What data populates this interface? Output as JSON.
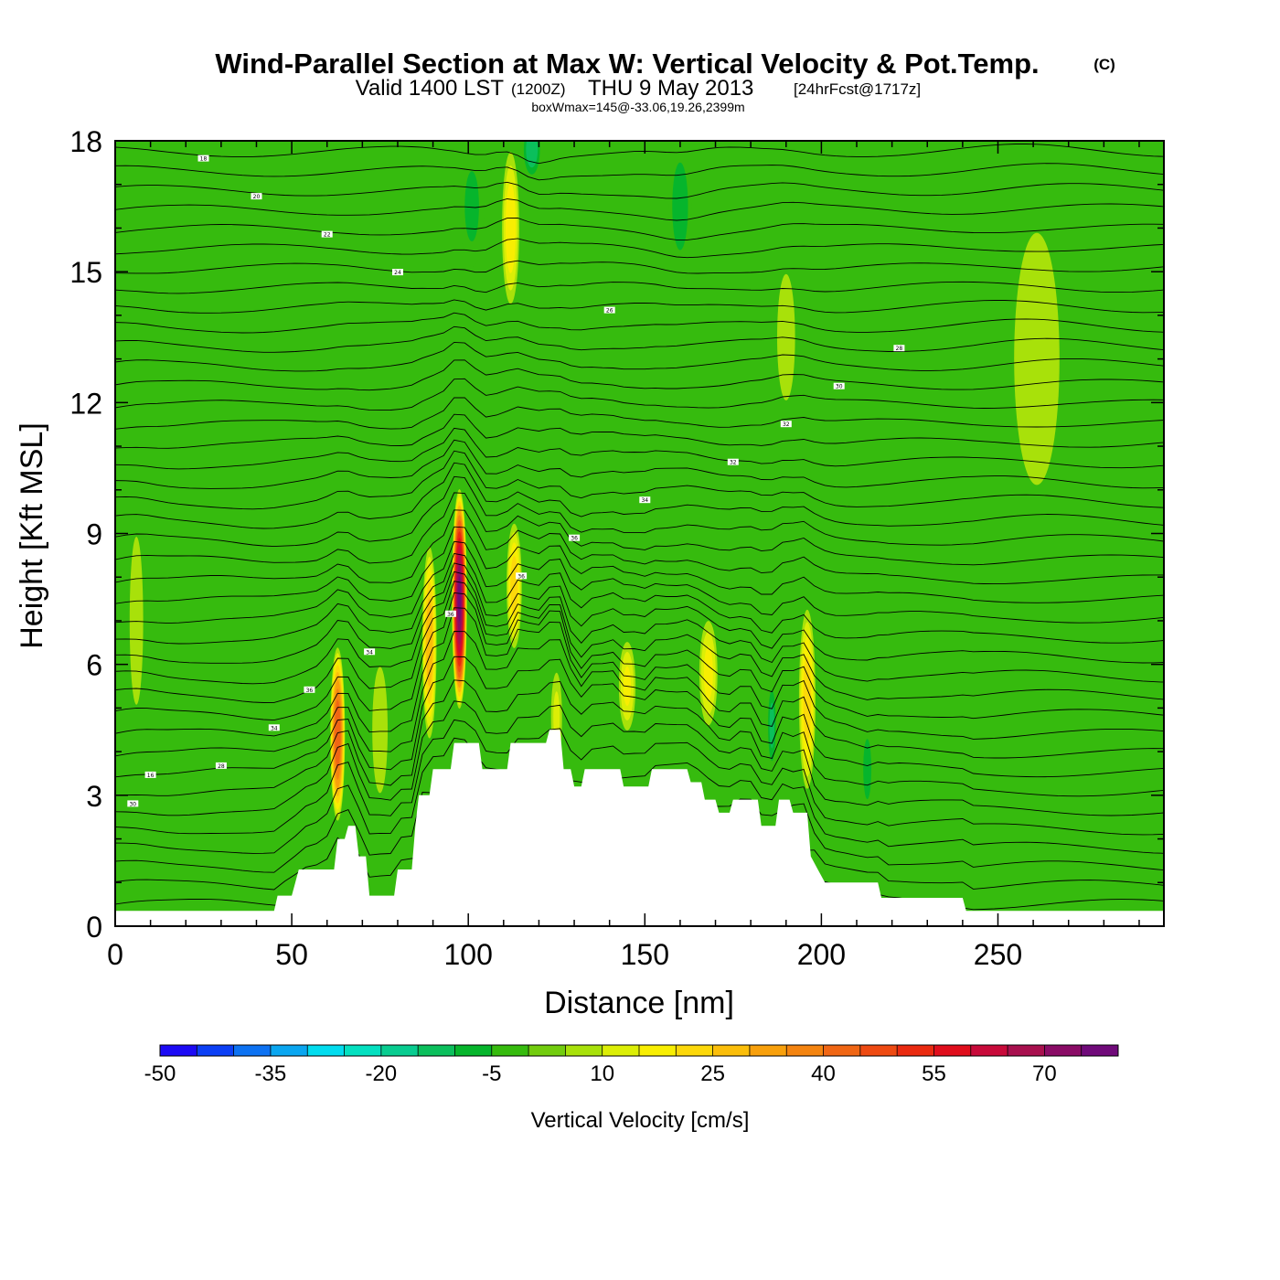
{
  "header": {
    "title": "Wind-Parallel Section at Max W: Vertical Velocity & Pot.Temp.",
    "copyright": "(C)",
    "valid_main": "Valid 1400 LST",
    "valid_utc": "(1200Z)",
    "valid_date": "THU 9 May 2013",
    "forecast": "[24hrFcst@1717z]",
    "box_info": "boxWmax=145@-33.06,19.26,2399m"
  },
  "chart_data": {
    "type": "heatmap",
    "title": "Wind-Parallel Section at Max W: Vertical Velocity & Pot.Temp.",
    "xlabel": "Distance [nm]",
    "ylabel": "Height [Kft MSL]",
    "xlim": [
      0,
      297
    ],
    "ylim": [
      0,
      18
    ],
    "x_ticks": [
      0,
      50,
      100,
      150,
      200,
      250
    ],
    "y_ticks": [
      0,
      3,
      6,
      9,
      12,
      15,
      18
    ],
    "x_tick_labels": [
      "0",
      "50",
      "100",
      "150",
      "200",
      "250"
    ],
    "y_tick_labels": [
      "0",
      "3",
      "6",
      "9",
      "12",
      "15",
      "18"
    ],
    "background_w": 0,
    "terrain": [
      [
        0,
        0.35
      ],
      [
        45,
        0.35
      ],
      [
        46,
        0.7
      ],
      [
        50,
        0.7
      ],
      [
        51,
        1.0
      ],
      [
        52,
        1.3
      ],
      [
        62,
        1.3
      ],
      [
        63,
        2.0
      ],
      [
        65,
        2.0
      ],
      [
        66,
        2.3
      ],
      [
        68,
        2.3
      ],
      [
        69,
        1.6
      ],
      [
        71,
        1.6
      ],
      [
        72,
        0.7
      ],
      [
        79,
        0.7
      ],
      [
        80,
        1.3
      ],
      [
        84,
        1.3
      ],
      [
        85,
        2.3
      ],
      [
        86,
        3.0
      ],
      [
        89,
        3.0
      ],
      [
        90,
        3.6
      ],
      [
        95,
        3.6
      ],
      [
        96,
        4.2
      ],
      [
        103,
        4.2
      ],
      [
        104,
        3.6
      ],
      [
        107,
        3.6
      ],
      [
        108,
        3.6
      ],
      [
        111,
        3.6
      ],
      [
        112,
        4.2
      ],
      [
        122,
        4.2
      ],
      [
        123,
        4.5
      ],
      [
        126,
        4.5
      ],
      [
        127,
        3.6
      ],
      [
        129,
        3.6
      ],
      [
        130,
        3.2
      ],
      [
        132,
        3.2
      ],
      [
        133,
        3.6
      ],
      [
        143,
        3.6
      ],
      [
        144,
        3.2
      ],
      [
        151,
        3.2
      ],
      [
        152,
        3.6
      ],
      [
        162,
        3.6
      ],
      [
        163,
        3.3
      ],
      [
        166,
        3.3
      ],
      [
        167,
        2.9
      ],
      [
        170,
        2.9
      ],
      [
        171,
        2.6
      ],
      [
        174,
        2.6
      ],
      [
        175,
        2.9
      ],
      [
        182,
        2.9
      ],
      [
        183,
        2.3
      ],
      [
        187,
        2.3
      ],
      [
        188,
        2.9
      ],
      [
        191,
        2.9
      ],
      [
        192,
        2.6
      ],
      [
        196,
        2.6
      ],
      [
        197,
        1.6
      ],
      [
        199,
        1.3
      ],
      [
        201,
        1.0
      ],
      [
        216,
        1.0
      ],
      [
        217,
        0.65
      ],
      [
        240,
        0.65
      ],
      [
        241,
        0.35
      ],
      [
        297,
        0.35
      ]
    ],
    "w_cells": [
      [
        63,
        4.4,
        2.2,
        2.1,
        44
      ],
      [
        97.5,
        7.5,
        2.2,
        2.6,
        75
      ],
      [
        89,
        6.5,
        2.2,
        2.4,
        28
      ],
      [
        113,
        7.8,
        2.4,
        1.6,
        22
      ],
      [
        101,
        16.5,
        4.5,
        1.8,
        -10
      ],
      [
        118,
        17.8,
        3.2,
        0.8,
        -18
      ],
      [
        112,
        16.0,
        2.8,
        2.0,
        18
      ],
      [
        160,
        16.5,
        4.0,
        1.8,
        -12
      ],
      [
        196,
        5.2,
        2.6,
        2.3,
        22
      ],
      [
        186,
        4.6,
        1.6,
        1.2,
        -16
      ],
      [
        213,
        3.6,
        1.8,
        1.1,
        -14
      ],
      [
        168,
        5.8,
        3.0,
        1.4,
        16
      ],
      [
        145,
        5.5,
        2.8,
        1.2,
        15
      ],
      [
        125,
        4.8,
        2.0,
        1.3,
        10
      ],
      [
        261,
        13.0,
        10.0,
        4.5,
        6
      ],
      [
        6,
        7.0,
        3.0,
        3.0,
        6
      ],
      [
        190,
        13.5,
        3.5,
        2.0,
        8
      ],
      [
        40,
        7.0,
        3.5,
        2.5,
        -3
      ],
      [
        225,
        6.0,
        5.0,
        2.5,
        3
      ],
      [
        30,
        2.5,
        5.0,
        1.0,
        3
      ],
      [
        75,
        4.5,
        3.0,
        2.0,
        8
      ]
    ],
    "theta_contour_labels": [
      "30",
      "28",
      "34",
      "36",
      "34",
      "36",
      "36",
      "36",
      "34",
      "32",
      "32",
      "30",
      "28",
      "26",
      "24",
      "22",
      "20",
      "18",
      "16"
    ],
    "colorbar": {
      "title": "Vertical Velocity [cm/s]",
      "levels": [
        -50,
        -45,
        -40,
        -35,
        -30,
        -25,
        -20,
        -15,
        -10,
        -5,
        0,
        5,
        10,
        15,
        20,
        25,
        30,
        35,
        40,
        45,
        50,
        55,
        60,
        65,
        70,
        75
      ],
      "tick_labels": [
        "-50",
        "-35",
        "-20",
        "-5",
        "10",
        "25",
        "40",
        "55",
        "70"
      ],
      "colors": [
        "#1c0af5",
        "#0c3ff5",
        "#0d72f2",
        "#0aa6f0",
        "#02dcee",
        "#04e0c0",
        "#08cc90",
        "#0bbf5c",
        "#06b52c",
        "#36bb0e",
        "#72cc0e",
        "#a8e10a",
        "#dcee06",
        "#f8ee02",
        "#fcd80a",
        "#fbbe0a",
        "#f8a00c",
        "#f48410",
        "#f06614",
        "#ee4a12",
        "#ea2a10",
        "#e00e1c",
        "#c80a3a",
        "#a8104e",
        "#8a0c66",
        "#700a7a"
      ]
    }
  }
}
